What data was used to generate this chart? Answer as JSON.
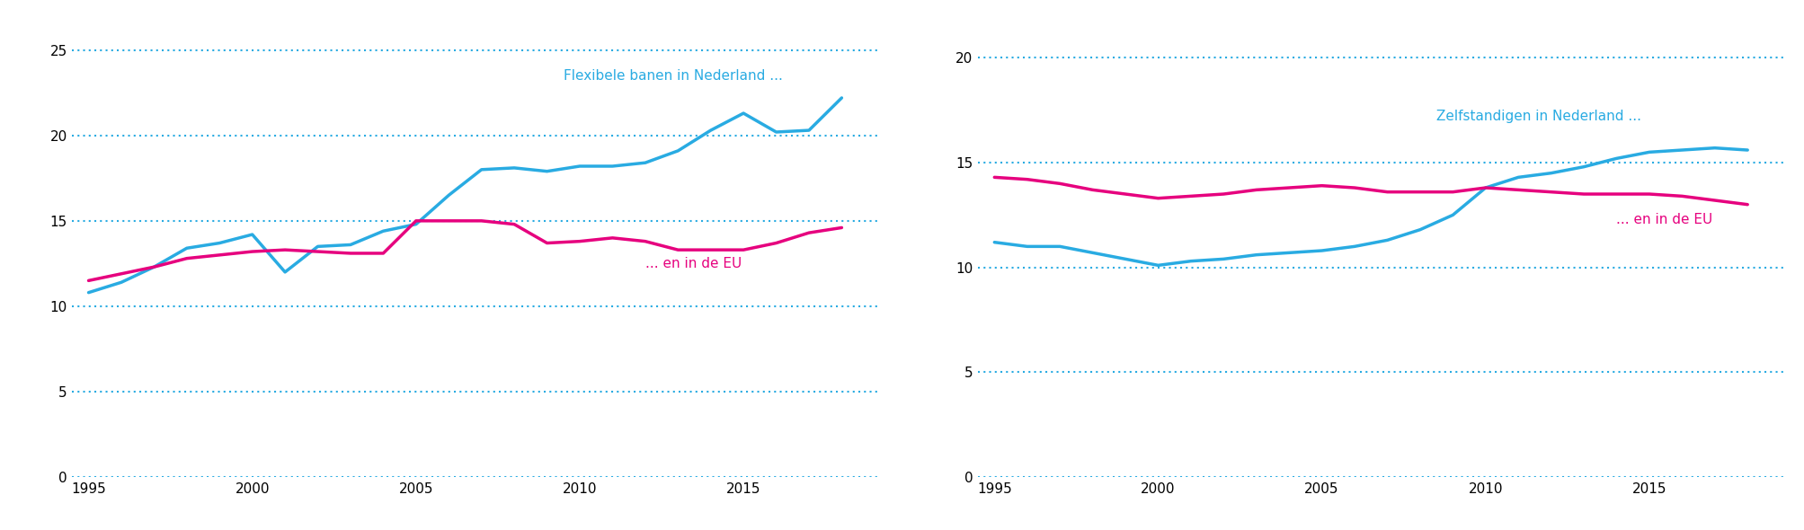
{
  "left_chart": {
    "label_nl": "Flexibele banen in Nederland ...",
    "label_eu": "... en in de EU",
    "years_nl": [
      1995,
      1996,
      1997,
      1998,
      1999,
      2000,
      2001,
      2002,
      2003,
      2004,
      2005,
      2006,
      2007,
      2008,
      2009,
      2010,
      2011,
      2012,
      2013,
      2014,
      2015,
      2016,
      2017,
      2018
    ],
    "values_nl": [
      10.8,
      11.4,
      12.3,
      13.4,
      13.7,
      14.2,
      12.0,
      13.5,
      13.6,
      14.4,
      14.8,
      16.5,
      18.0,
      18.1,
      17.9,
      18.2,
      18.2,
      18.4,
      19.1,
      20.3,
      21.3,
      20.2,
      20.3,
      22.2
    ],
    "years_eu": [
      1995,
      1996,
      1997,
      1998,
      1999,
      2000,
      2001,
      2002,
      2003,
      2004,
      2005,
      2006,
      2007,
      2008,
      2009,
      2010,
      2011,
      2012,
      2013,
      2014,
      2015,
      2016,
      2017,
      2018
    ],
    "values_eu": [
      11.5,
      11.9,
      12.3,
      12.8,
      13.0,
      13.2,
      13.3,
      13.2,
      13.1,
      13.1,
      15.0,
      15.0,
      15.0,
      14.8,
      13.7,
      13.8,
      14.0,
      13.8,
      13.3,
      13.3,
      13.3,
      13.7,
      14.3,
      14.6
    ],
    "ylim": [
      0,
      27
    ],
    "yticks": [
      0,
      5,
      10,
      15,
      20,
      25
    ],
    "xlim": [
      1994.5,
      2019.2
    ],
    "xticks": [
      1995,
      2000,
      2005,
      2010,
      2015
    ],
    "ann_nl_x": 2009.5,
    "ann_nl_y": 23.5,
    "ann_eu_x": 2012.0,
    "ann_eu_y": 12.5
  },
  "right_chart": {
    "label_nl": "Zelfstandigen in Nederland ...",
    "label_eu": "... en in de EU",
    "years_nl": [
      1995,
      1996,
      1997,
      1998,
      1999,
      2000,
      2001,
      2002,
      2003,
      2004,
      2005,
      2006,
      2007,
      2008,
      2009,
      2010,
      2011,
      2012,
      2013,
      2014,
      2015,
      2016,
      2017,
      2018
    ],
    "values_nl": [
      11.2,
      11.0,
      11.0,
      10.7,
      10.4,
      10.1,
      10.3,
      10.4,
      10.6,
      10.7,
      10.8,
      11.0,
      11.3,
      11.8,
      12.5,
      13.8,
      14.3,
      14.5,
      14.8,
      15.2,
      15.5,
      15.6,
      15.7,
      15.6
    ],
    "years_eu": [
      1995,
      1996,
      1997,
      1998,
      1999,
      2000,
      2001,
      2002,
      2003,
      2004,
      2005,
      2006,
      2007,
      2008,
      2009,
      2010,
      2011,
      2012,
      2013,
      2014,
      2015,
      2016,
      2017,
      2018
    ],
    "values_eu": [
      14.3,
      14.2,
      14.0,
      13.7,
      13.5,
      13.3,
      13.4,
      13.5,
      13.7,
      13.8,
      13.9,
      13.8,
      13.6,
      13.6,
      13.6,
      13.8,
      13.7,
      13.6,
      13.5,
      13.5,
      13.5,
      13.4,
      13.2,
      13.0
    ],
    "ylim": [
      0,
      22
    ],
    "yticks": [
      0,
      5,
      10,
      15,
      20
    ],
    "xlim": [
      1994.5,
      2019.2
    ],
    "xticks": [
      1995,
      2000,
      2005,
      2010,
      2015
    ],
    "ann_nl_x": 2008.5,
    "ann_nl_y": 17.2,
    "ann_eu_x": 2014.0,
    "ann_eu_y": 12.3
  },
  "color_nl": "#29ABE2",
  "color_eu": "#E6007E",
  "grid_color": "#29ABE2",
  "line_width": 2.5,
  "background_color": "#ffffff",
  "annotation_fontsize": 11,
  "tick_fontsize": 11
}
